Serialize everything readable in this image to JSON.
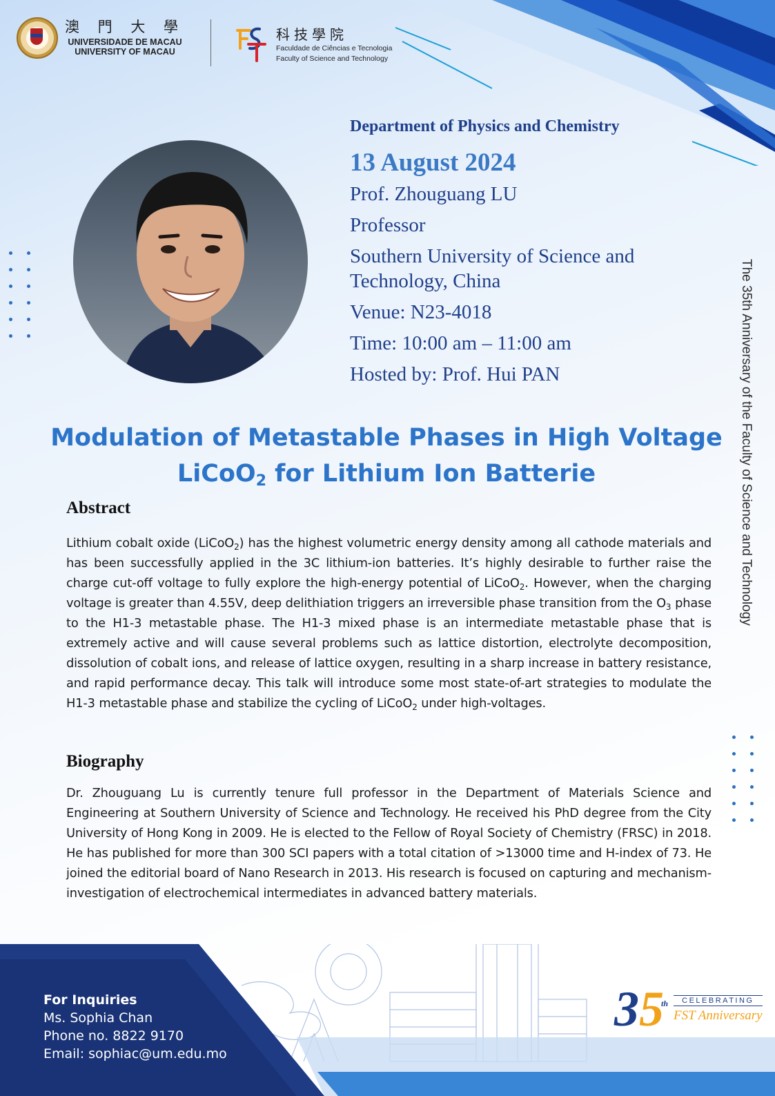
{
  "header": {
    "um_chinese": "澳 門 大 學",
    "um_portuguese": "UNIVERSIDADE DE MACAU",
    "um_english": "UNIVERSITY OF MACAU",
    "fst_chinese": "科技學院",
    "fst_portuguese": "Faculdade de Ciências e Tecnologia",
    "fst_english": "Faculty of Science and Technology"
  },
  "event": {
    "department": "Department of Physics and Chemistry",
    "date": "13 August 2024",
    "speaker": "Prof. Zhouguang LU",
    "position": "Professor",
    "affiliation_line1": "Southern University of Science and",
    "affiliation_line2": "Technology, China",
    "venue": "Venue:  N23-4018",
    "time": "Time:  10:00 am – 11:00 am",
    "host": "Hosted by:  Prof. Hui PAN"
  },
  "side_text": "The 35th Anniversary of the Faculty of Science and Technology",
  "talk": {
    "title_line1": "Modulation of Metastable Phases in High Voltage",
    "title_line2_a": "LiCoO",
    "title_line2_sub": "2",
    "title_line2_b": " for Lithium Ion Batterie"
  },
  "abstract": {
    "heading": "Abstract",
    "t1": "Lithium cobalt oxide (LiCoO",
    "s1": "2",
    "t2": ") has the highest volumetric energy density among all cathode materials and has been successfully applied in the 3C lithium-ion batteries. It’s highly desirable to further raise the charge cut-off voltage to fully explore the high-energy potential of LiCoO",
    "s2": "2",
    "t3": ". However, when the charging voltage is greater than 4.55V, deep delithiation triggers an irreversible phase transition from the O",
    "s3": "3",
    "t4": " phase to the H1-3 metastable phase. The H1-3 mixed phase is an intermediate metastable phase that is extremely active and will cause several problems such as lattice distortion, electrolyte decomposition, dissolution of cobalt ions, and release of lattice oxygen, resulting in a sharp increase in battery resistance, and rapid performance decay. This talk will introduce some most state-of-art strategies to modulate the H1-3 metastable phase and stabilize the cycling of LiCoO",
    "s4": "2",
    "t5": " under high-voltages."
  },
  "biography": {
    "heading": "Biography",
    "text": "Dr. Zhouguang Lu is currently tenure full professor in the Department of Materials Science and Engineering at Southern University of Science and Technology. He received his PhD degree from the City University of Hong Kong in 2009. He is elected to the Fellow of Royal Society of Chemistry (FRSC) in 2018. He has published for more than 300 SCI papers with a total citation of >13000 time and H-index of 73. He joined the editorial board of Nano Research in 2013. His research is focused on capturing and mechanism-investigation of electrochemical intermediates in advanced battery materials."
  },
  "inquiries": {
    "heading": "For Inquiries",
    "contact": "Ms. Sophia Chan",
    "phone": "Phone no. 8822 9170",
    "email": "Email: sophiac@um.edu.mo"
  },
  "badge": {
    "digit_3": "3",
    "digit_5": "5",
    "suffix": "th",
    "celebrating": "CELEBRATING",
    "anniversary": "FST Anniversary"
  }
}
